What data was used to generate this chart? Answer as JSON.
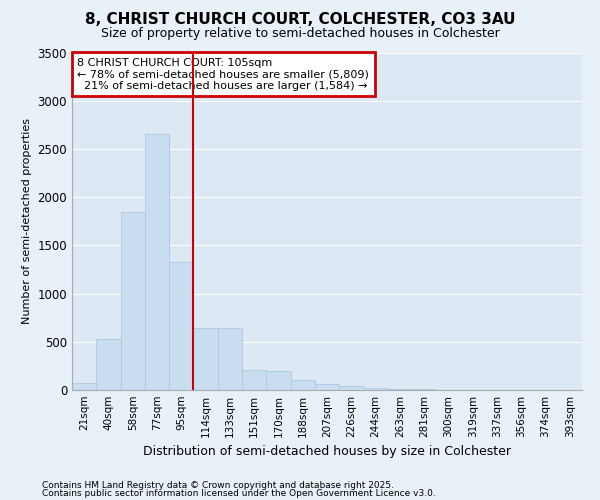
{
  "title1": "8, CHRIST CHURCH COURT, COLCHESTER, CO3 3AU",
  "title2": "Size of property relative to semi-detached houses in Colchester",
  "xlabel": "Distribution of semi-detached houses by size in Colchester",
  "ylabel": "Number of semi-detached properties",
  "footer1": "Contains HM Land Registry data © Crown copyright and database right 2025.",
  "footer2": "Contains public sector information licensed under the Open Government Licence v3.0.",
  "bar_color": "#c8ddef",
  "bar_edge_color": "#a8c4de",
  "bg_color": "#e8f0f8",
  "plot_bg_color": "#dce8f4",
  "grid_color": "#ffffff",
  "ann_box_color": "#cc0000",
  "vline_color": "#cc0000",
  "categories": [
    "21sqm",
    "40sqm",
    "58sqm",
    "77sqm",
    "95sqm",
    "114sqm",
    "133sqm",
    "151sqm",
    "170sqm",
    "188sqm",
    "207sqm",
    "226sqm",
    "244sqm",
    "263sqm",
    "281sqm",
    "300sqm",
    "319sqm",
    "337sqm",
    "356sqm",
    "374sqm",
    "393sqm"
  ],
  "values": [
    70,
    530,
    1850,
    2650,
    1330,
    640,
    640,
    210,
    200,
    100,
    60,
    45,
    25,
    12,
    6,
    3,
    2,
    1,
    1,
    0,
    0
  ],
  "vline_x_index": 4.5,
  "ylim": [
    0,
    3500
  ],
  "yticks": [
    0,
    500,
    1000,
    1500,
    2000,
    2500,
    3000,
    3500
  ],
  "property_name": "8 CHRIST CHURCH COURT:",
  "property_size_label": "105sqm",
  "pct_smaller": 78,
  "n_smaller": "5,809",
  "pct_larger": 21,
  "n_larger": "1,584"
}
